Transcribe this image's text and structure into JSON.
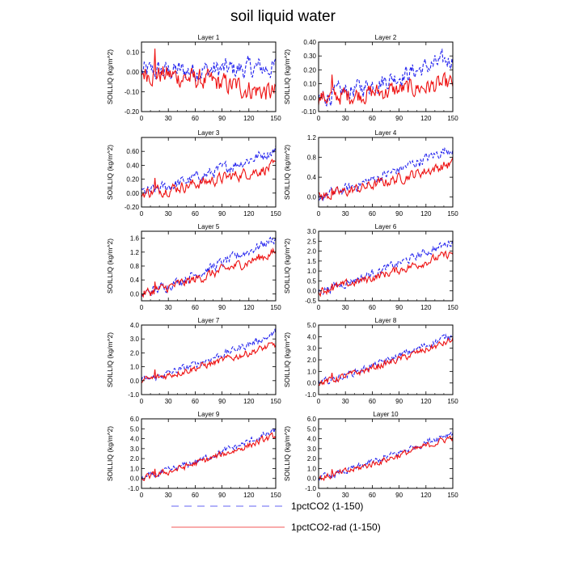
{
  "title": "soil liquid water",
  "chart_data": [
    {
      "type": "line",
      "title": "Layer 1",
      "ylabel": "SOILLIQ  (kg/m^2)",
      "xlim": [
        0,
        150
      ],
      "ylim": [
        -0.2,
        0.15
      ],
      "xticks": [
        0,
        30,
        60,
        90,
        120,
        150
      ],
      "yticks": [
        -0.2,
        -0.1,
        0.0,
        0.1
      ],
      "yticklabels": [
        "-0.20",
        "-0.10",
        "0.00",
        "0.10"
      ],
      "series": [
        {
          "name": "1pctCO2 (1-150)",
          "start": 0.0,
          "end": 0.02,
          "noise": 0.045
        },
        {
          "name": "1pctCO2-rad (1-150)",
          "start": 0.0,
          "end": -0.11,
          "noise": 0.045
        }
      ]
    },
    {
      "type": "line",
      "title": "Layer 2",
      "ylabel": "SOILLIQ  (kg/m^2)",
      "xlim": [
        0,
        150
      ],
      "ylim": [
        -0.1,
        0.4
      ],
      "xticks": [
        0,
        30,
        60,
        90,
        120,
        150
      ],
      "yticks": [
        -0.1,
        0.0,
        0.1,
        0.2,
        0.3,
        0.4
      ],
      "yticklabels": [
        "-0.10",
        "0.00",
        "0.10",
        "0.20",
        "0.30",
        "0.40"
      ],
      "series": [
        {
          "name": "1pctCO2 (1-150)",
          "start": 0.0,
          "end": 0.28,
          "noise": 0.055
        },
        {
          "name": "1pctCO2-rad (1-150)",
          "start": 0.0,
          "end": 0.1,
          "noise": 0.055
        }
      ]
    },
    {
      "type": "line",
      "title": "Layer 3",
      "ylabel": "SOILLIQ  (kg/m^2)",
      "xlim": [
        0,
        150
      ],
      "ylim": [
        -0.2,
        0.8
      ],
      "xticks": [
        0,
        30,
        60,
        90,
        120,
        150
      ],
      "yticks": [
        -0.2,
        0.0,
        0.2,
        0.4,
        0.6
      ],
      "yticklabels": [
        "-0.20",
        "0.00",
        "0.20",
        "0.40",
        "0.60"
      ],
      "series": [
        {
          "name": "1pctCO2 (1-150)",
          "start": 0.0,
          "end": 0.62,
          "noise": 0.07
        },
        {
          "name": "1pctCO2-rad (1-150)",
          "start": 0.0,
          "end": 0.38,
          "noise": 0.07
        }
      ]
    },
    {
      "type": "line",
      "title": "Layer 4",
      "ylabel": "SOILLIQ  (kg/m^2)",
      "xlim": [
        0,
        150
      ],
      "ylim": [
        -0.2,
        1.2
      ],
      "xticks": [
        0,
        30,
        60,
        90,
        120,
        150
      ],
      "yticks": [
        0.0,
        0.4,
        0.8,
        1.2
      ],
      "yticklabels": [
        "0.0",
        "0.4",
        "0.8",
        "1.2"
      ],
      "series": [
        {
          "name": "1pctCO2 (1-150)",
          "start": 0.0,
          "end": 1.0,
          "noise": 0.09
        },
        {
          "name": "1pctCO2-rad (1-150)",
          "start": 0.0,
          "end": 0.68,
          "noise": 0.09
        }
      ]
    },
    {
      "type": "line",
      "title": "Layer 5",
      "ylabel": "SOILLIQ  (kg/m^2)",
      "xlim": [
        0,
        150
      ],
      "ylim": [
        -0.2,
        1.8
      ],
      "xticks": [
        0,
        30,
        60,
        90,
        120,
        150
      ],
      "yticks": [
        0.0,
        0.4,
        0.8,
        1.2,
        1.6
      ],
      "yticklabels": [
        "0.0",
        "0.4",
        "0.8",
        "1.2",
        "1.6"
      ],
      "series": [
        {
          "name": "1pctCO2 (1-150)",
          "start": 0.0,
          "end": 1.6,
          "noise": 0.12
        },
        {
          "name": "1pctCO2-rad (1-150)",
          "start": 0.0,
          "end": 1.2,
          "noise": 0.12
        }
      ]
    },
    {
      "type": "line",
      "title": "Layer 6",
      "ylabel": "SOILLIQ  (kg/m^2)",
      "xlim": [
        0,
        150
      ],
      "ylim": [
        -0.5,
        3.0
      ],
      "xticks": [
        0,
        30,
        60,
        90,
        120,
        150
      ],
      "yticks": [
        -0.5,
        0.0,
        0.5,
        1.0,
        1.5,
        2.0,
        2.5,
        3.0
      ],
      "yticklabels": [
        "-0.5",
        "0.0",
        "0.5",
        "1.0",
        "1.5",
        "2.0",
        "2.5",
        "3.0"
      ],
      "series": [
        {
          "name": "1pctCO2 (1-150)",
          "start": 0.0,
          "end": 2.5,
          "noise": 0.18
        },
        {
          "name": "1pctCO2-rad (1-150)",
          "start": 0.0,
          "end": 1.9,
          "noise": 0.18
        }
      ]
    },
    {
      "type": "line",
      "title": "Layer 7",
      "ylabel": "SOILLIQ  (kg/m^2)",
      "xlim": [
        0,
        150
      ],
      "ylim": [
        -1.0,
        4.0
      ],
      "xticks": [
        0,
        30,
        60,
        90,
        120,
        150
      ],
      "yticks": [
        -1.0,
        0.0,
        1.0,
        2.0,
        3.0,
        4.0
      ],
      "yticklabels": [
        "-1.0",
        "0.0",
        "1.0",
        "2.0",
        "3.0",
        "4.0"
      ],
      "series": [
        {
          "name": "1pctCO2 (1-150)",
          "start": 0.0,
          "end": 3.4,
          "noise": 0.22
        },
        {
          "name": "1pctCO2-rad (1-150)",
          "start": 0.0,
          "end": 2.6,
          "noise": 0.22
        }
      ]
    },
    {
      "type": "line",
      "title": "Layer 8",
      "ylabel": "SOILLIQ  (kg/m^2)",
      "xlim": [
        0,
        150
      ],
      "ylim": [
        -1.0,
        5.0
      ],
      "xticks": [
        0,
        30,
        60,
        90,
        120,
        150
      ],
      "yticks": [
        -1.0,
        0.0,
        1.0,
        2.0,
        3.0,
        4.0,
        5.0
      ],
      "yticklabels": [
        "-1.0",
        "0.0",
        "1.0",
        "2.0",
        "3.0",
        "4.0",
        "5.0"
      ],
      "series": [
        {
          "name": "1pctCO2 (1-150)",
          "start": 0.0,
          "end": 4.2,
          "noise": 0.25
        },
        {
          "name": "1pctCO2-rad (1-150)",
          "start": 0.0,
          "end": 3.7,
          "noise": 0.25
        }
      ]
    },
    {
      "type": "line",
      "title": "Layer 9",
      "ylabel": "SOILLIQ  (kg/m^2)",
      "xlim": [
        0,
        150
      ],
      "ylim": [
        -1.0,
        6.0
      ],
      "xticks": [
        0,
        30,
        60,
        90,
        120,
        150
      ],
      "yticks": [
        -1.0,
        0.0,
        1.0,
        2.0,
        3.0,
        4.0,
        5.0,
        6.0
      ],
      "yticklabels": [
        "-1.0",
        "0.0",
        "1.0",
        "2.0",
        "3.0",
        "4.0",
        "5.0",
        "6.0"
      ],
      "series": [
        {
          "name": "1pctCO2 (1-150)",
          "start": 0.0,
          "end": 4.8,
          "noise": 0.28
        },
        {
          "name": "1pctCO2-rad (1-150)",
          "start": 0.0,
          "end": 4.3,
          "noise": 0.28
        }
      ]
    },
    {
      "type": "line",
      "title": "Layer 10",
      "ylabel": "SOILLIQ  (kg/m^2)",
      "xlim": [
        0,
        150
      ],
      "ylim": [
        -1.0,
        6.0
      ],
      "xticks": [
        0,
        30,
        60,
        90,
        120,
        150
      ],
      "yticks": [
        -1.0,
        0.0,
        1.0,
        2.0,
        3.0,
        4.0,
        5.0,
        6.0
      ],
      "yticklabels": [
        "-1.0",
        "0.0",
        "1.0",
        "2.0",
        "3.0",
        "4.0",
        "5.0",
        "6.0"
      ],
      "series": [
        {
          "name": "1pctCO2 (1-150)",
          "start": 0.0,
          "end": 4.7,
          "noise": 0.28
        },
        {
          "name": "1pctCO2-rad (1-150)",
          "start": 0.0,
          "end": 4.2,
          "noise": 0.28
        }
      ]
    }
  ],
  "legend": [
    {
      "label": "1pctCO2 (1-150)",
      "color": "#2222ee",
      "style": "dashed"
    },
    {
      "label": "1pctCO2-rad (1-150)",
      "color": "#ee1111",
      "style": "solid"
    }
  ],
  "colors": {
    "blue": "#2222ee",
    "red": "#ee1111"
  }
}
